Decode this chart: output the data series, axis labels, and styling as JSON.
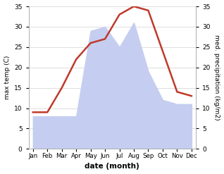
{
  "months": [
    "Jan",
    "Feb",
    "Mar",
    "Apr",
    "May",
    "Jun",
    "Jul",
    "Aug",
    "Sep",
    "Oct",
    "Nov",
    "Dec"
  ],
  "temp": [
    9,
    9,
    15,
    22,
    26,
    27,
    33,
    35,
    34,
    24,
    14,
    13
  ],
  "precip": [
    8,
    8,
    8,
    8,
    29,
    30,
    25,
    31,
    19,
    12,
    11,
    11
  ],
  "temp_color": "#c0392b",
  "precip_color": "#c5cef0",
  "ylim": [
    0,
    35
  ],
  "yticks": [
    0,
    5,
    10,
    15,
    20,
    25,
    30,
    35
  ],
  "xlabel": "date (month)",
  "ylabel_left": "max temp (C)",
  "ylabel_right": "med. precipitation (kg/m2)",
  "background_color": "#ffffff",
  "grid_color": "#d0d0d0"
}
